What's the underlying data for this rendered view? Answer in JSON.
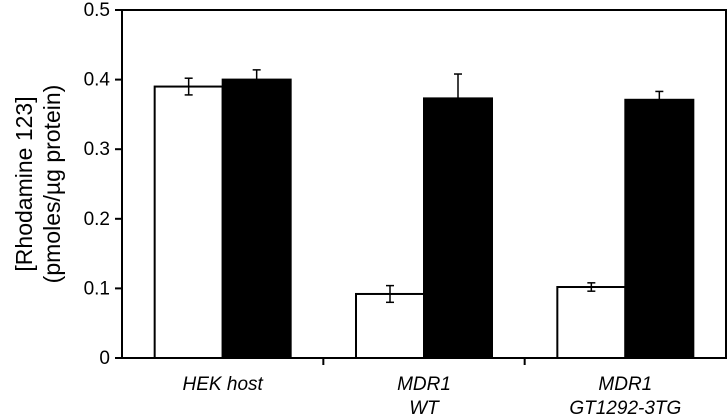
{
  "chart_data": {
    "type": "bar",
    "title": "",
    "ylabel_lines": [
      "[Rhodamine 123]",
      "(pmoles/µg protein)"
    ],
    "xlabel": "",
    "ylim": [
      0,
      0.5
    ],
    "yticks": [
      "0",
      "0.1",
      "0.2",
      "0.3",
      "0.4",
      "0.5"
    ],
    "categories": [
      [
        "HEK host"
      ],
      [
        "MDR1",
        "WT"
      ],
      [
        "MDR1",
        "GT1292-3TG"
      ]
    ],
    "series": [
      {
        "fill": "#ffffff",
        "values": [
          0.39,
          0.092,
          0.102
        ],
        "errors": [
          0.012,
          0.012,
          0.006
        ]
      },
      {
        "fill": "#000000",
        "values": [
          0.4,
          0.373,
          0.371
        ],
        "errors": [
          0.014,
          0.035,
          0.012
        ]
      }
    ],
    "legend": "none",
    "grid": false
  }
}
